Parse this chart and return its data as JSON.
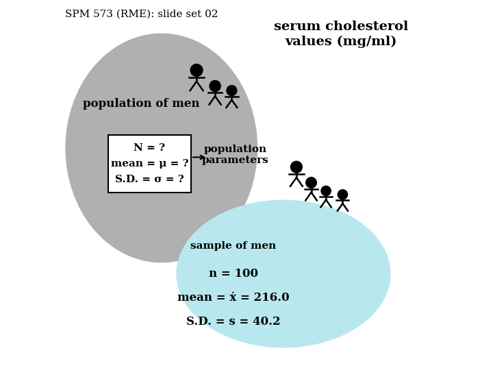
{
  "title_top_left": "SPM 573 (RME): slide set 02",
  "title_top_right": "serum cholesterol\nvalues (mg/ml)",
  "pop_bubble_color": "#b0b0b0",
  "sample_bubble_color": "#b8e8ee",
  "pop_label": "population of men",
  "pop_box_lines": [
    "N = ?",
    "mean = μ = ?",
    "S.D. = σ = ?"
  ],
  "pop_params_label": "population\nparameters",
  "sample_label": "sample of men",
  "sample_stats": [
    "n = 100",
    "mean = ẋ = 216.0",
    "S.D. = s = 40.2"
  ],
  "background_color": "#ffffff"
}
